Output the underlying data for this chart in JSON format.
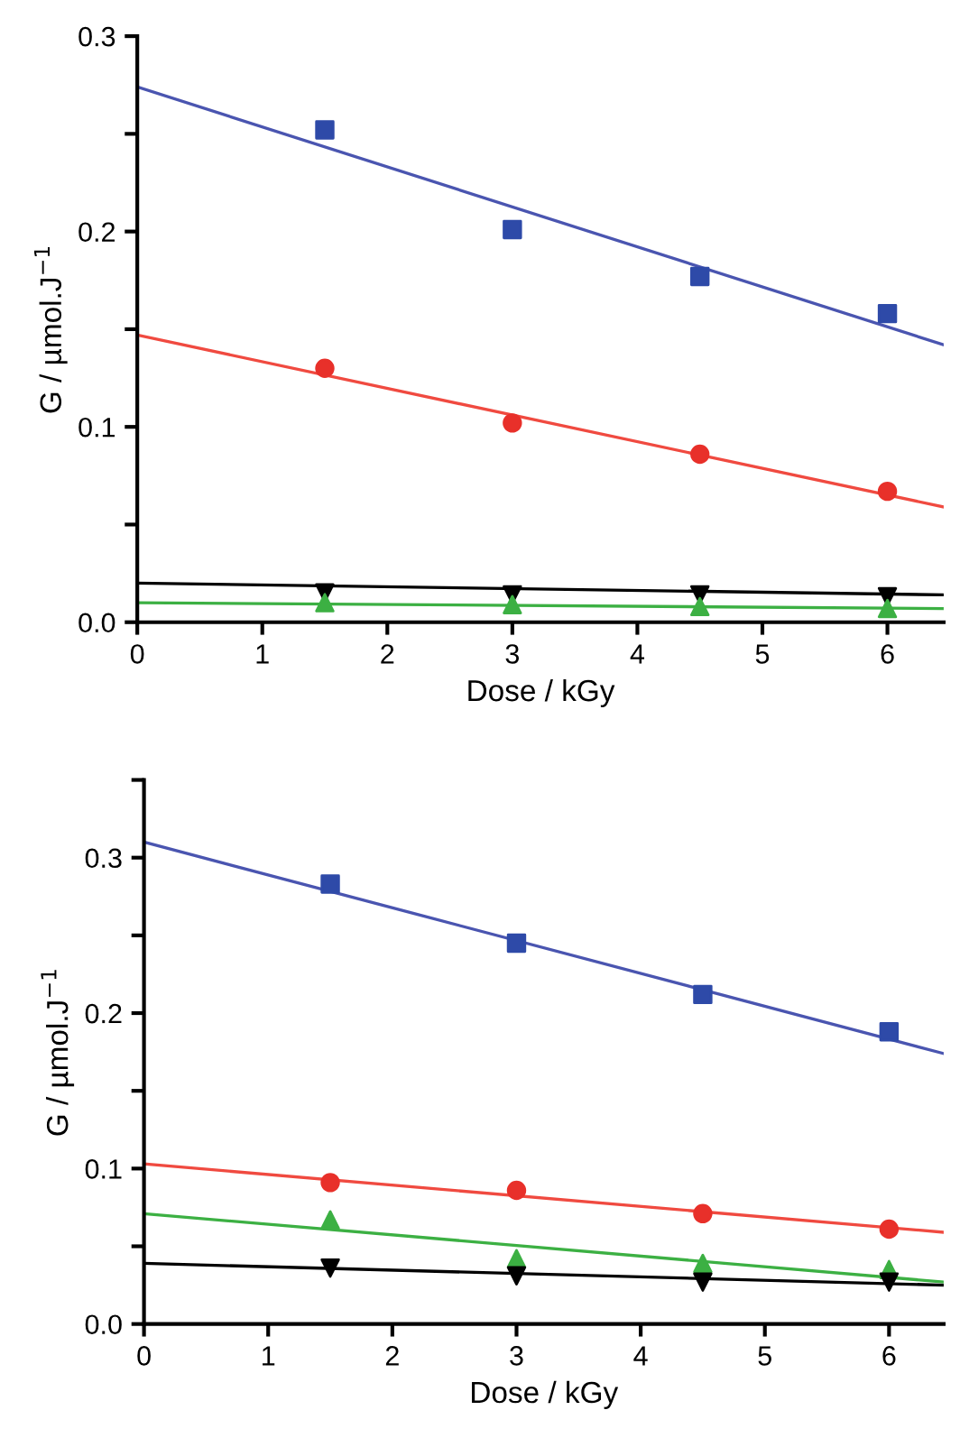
{
  "chart_data": [
    {
      "type": "scatter",
      "xlabel": "Dose / kGy",
      "ylabel": "G / µmol.J$^{−1}$",
      "xlim": [
        0,
        6.45
      ],
      "xticks": [
        0,
        1,
        2,
        3,
        4,
        5,
        6
      ],
      "ylim": [
        0,
        0.3
      ],
      "yticks": [
        {
          "value": 0,
          "label": "0.0"
        },
        {
          "value": 0.05,
          "label": null
        },
        0.1,
        {
          "value": 0.15,
          "label": null
        },
        0.2,
        {
          "value": 0.25,
          "label": null
        },
        0.3
      ],
      "grid": false,
      "x": [
        1.5,
        3,
        4.5,
        6
      ],
      "series": [
        {
          "color": "#2e4aa8",
          "marker": "square",
          "values": [
            0.252,
            0.201,
            0.177,
            0.158
          ]
        },
        {
          "color": "#e8302a",
          "marker": "circle",
          "values": [
            0.13,
            0.102,
            0.086,
            0.067
          ]
        },
        {
          "color": "#000000",
          "marker": "triangle_down",
          "values": [
            0.015,
            0.014,
            0.014,
            0.013
          ]
        },
        {
          "color": "#3cb043",
          "marker": "triangle",
          "values": [
            0.01,
            0.009,
            0.008,
            0.007
          ]
        },
        {
          "type": "line",
          "color": "#4a55b0",
          "x": [
            0,
            6.45
          ],
          "values": [
            0.274,
            0.142
          ]
        },
        {
          "type": "line",
          "color": "#f04a40",
          "x": [
            0,
            6.45
          ],
          "values": [
            0.147,
            0.059
          ]
        },
        {
          "type": "line",
          "color": "#000000",
          "x": [
            0,
            6.45
          ],
          "values": [
            0.02,
            0.014
          ]
        },
        {
          "type": "line",
          "color": "#3cb043",
          "x": [
            0,
            6.45
          ],
          "values": [
            0.01,
            0.007
          ]
        }
      ]
    },
    {
      "type": "scatter",
      "xlabel": "Dose / kGy",
      "ylabel": "G / µmol.J$^{−1}$",
      "xlim": [
        0,
        6.44
      ],
      "xticks": [
        0,
        1,
        2,
        3,
        4,
        5,
        6
      ],
      "ylim": [
        0,
        0.35
      ],
      "yticks": [
        {
          "value": 0,
          "label": "0.0"
        },
        {
          "value": 0.05,
          "label": null
        },
        0.1,
        {
          "value": 0.15,
          "label": null
        },
        0.2,
        {
          "value": 0.25,
          "label": null
        },
        0.3,
        {
          "value": 0.35,
          "label": null
        }
      ],
      "grid": false,
      "x": [
        1.5,
        3,
        4.5,
        6
      ],
      "series": [
        {
          "color": "#2e4aa8",
          "marker": "square",
          "values": [
            0.283,
            0.245,
            0.212,
            0.188
          ]
        },
        {
          "color": "#e8302a",
          "marker": "circle",
          "values": [
            0.091,
            0.086,
            0.071,
            0.061
          ]
        },
        {
          "color": "#3cb043",
          "marker": "triangle",
          "values": [
            0.067,
            0.042,
            0.039,
            0.035
          ]
        },
        {
          "color": "#000000",
          "marker": "triangle_down",
          "values": [
            0.036,
            0.031,
            0.027,
            0.027
          ]
        },
        {
          "type": "line",
          "color": "#4a55b0",
          "x": [
            0,
            6.44
          ],
          "values": [
            0.31,
            0.174
          ]
        },
        {
          "type": "line",
          "color": "#f04a40",
          "x": [
            0,
            6.44
          ],
          "values": [
            0.103,
            0.059
          ]
        },
        {
          "type": "line",
          "color": "#3cb043",
          "x": [
            0,
            6.44
          ],
          "values": [
            0.071,
            0.027
          ]
        },
        {
          "type": "line",
          "color": "#000000",
          "x": [
            0,
            6.44
          ],
          "values": [
            0.039,
            0.025
          ]
        }
      ]
    }
  ]
}
